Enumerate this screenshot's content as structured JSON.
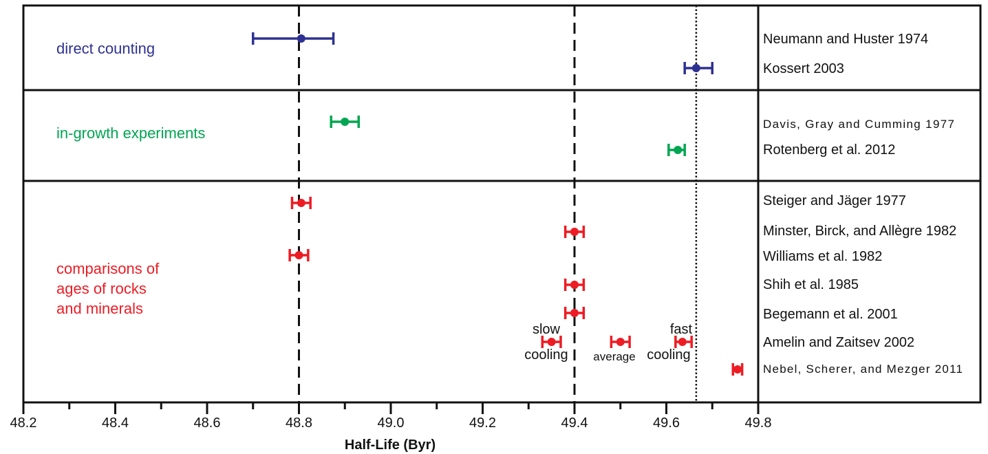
{
  "chart_data": {
    "type": "scatter",
    "xlabel": "Half-Life (Byr)",
    "xlim": [
      48.2,
      49.8
    ],
    "x_ticks": [
      "48.2",
      "48.4",
      "48.6",
      "48.8",
      "49.0",
      "49.2",
      "49.4",
      "49.6",
      "49.8"
    ],
    "reference_lines": [
      {
        "x": 48.8,
        "style": "dashed"
      },
      {
        "x": 49.4,
        "style": "dashed"
      },
      {
        "x": 49.665,
        "style": "dotted"
      }
    ],
    "panels": [
      {
        "label": "direct counting",
        "color": "#2e3192",
        "points": [
          {
            "ref": "Neumann and Huster 1974",
            "x": 48.805,
            "low": 48.7,
            "high": 48.875
          },
          {
            "ref": "Kossert 2003",
            "x": 49.665,
            "low": 49.64,
            "high": 49.7
          }
        ]
      },
      {
        "label": "in-growth experiments",
        "color": "#00a651",
        "points": [
          {
            "ref": "Davis, Gray and Cumming 1977",
            "x": 48.9,
            "low": 48.87,
            "high": 48.93
          },
          {
            "ref": "Rotenberg et al. 2012",
            "x": 49.625,
            "low": 49.605,
            "high": 49.64
          }
        ]
      },
      {
        "label": "comparisons of ages of rocks and minerals",
        "label_lines": [
          "comparisons of",
          "ages of rocks",
          "and minerals"
        ],
        "color": "#ed1c24",
        "points": [
          {
            "ref": "Steiger and Jäger 1977",
            "x": 48.805,
            "low": 48.785,
            "high": 48.825
          },
          {
            "ref": "Minster, Birck, and Allègre 1982",
            "x": 49.4,
            "low": 49.38,
            "high": 49.42
          },
          {
            "ref": "Williams et al. 1982",
            "x": 48.8,
            "low": 48.78,
            "high": 48.82
          },
          {
            "ref": "Shih et al. 1985",
            "x": 49.4,
            "low": 49.38,
            "high": 49.42
          },
          {
            "ref": "Begemann et al. 2001",
            "x": 49.4,
            "low": 49.38,
            "high": 49.42
          },
          {
            "ref": "Amelin and Zaitsev 2002",
            "x": 49.35,
            "low": 49.33,
            "high": 49.37
          },
          {
            "ref": "Amelin and Zaitsev 2002",
            "x": 49.5,
            "low": 49.48,
            "high": 49.52
          },
          {
            "ref": "Amelin and Zaitsev 2002",
            "x": 49.635,
            "low": 49.62,
            "high": 49.655
          },
          {
            "ref": "Nebel, Scherer, and Mezger 2011",
            "x": 49.755,
            "low": 49.745,
            "high": 49.765
          }
        ]
      }
    ],
    "references": [
      "Neumann and Huster 1974",
      "Kossert 2003",
      "Davis, Gray and Cumming 1977",
      "Rotenberg et al. 2012",
      "Steiger and Jäger 1977",
      "Minster, Birck, and Allègre 1982",
      "Williams et al. 1982",
      "Shih et al. 1985",
      "Begemann et al. 2001",
      "Amelin and Zaitsev 2002",
      "Nebel, Scherer, and Mezger 2011"
    ],
    "annotations": [
      {
        "text": "slow",
        "x": 49.34
      },
      {
        "text": "cooling",
        "x": 49.34
      },
      {
        "text": "average",
        "x": 49.495
      },
      {
        "text": "fast",
        "x": 49.645
      },
      {
        "text": "cooling",
        "x": 49.64
      }
    ]
  }
}
